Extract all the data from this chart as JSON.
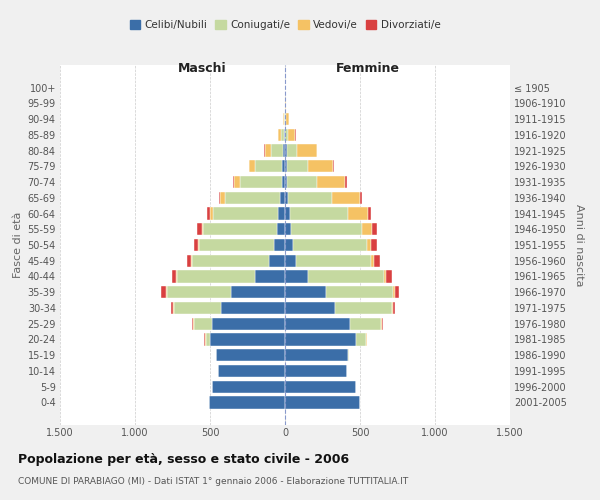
{
  "age_groups": [
    "0-4",
    "5-9",
    "10-14",
    "15-19",
    "20-24",
    "25-29",
    "30-34",
    "35-39",
    "40-44",
    "45-49",
    "50-54",
    "55-59",
    "60-64",
    "65-69",
    "70-74",
    "75-79",
    "80-84",
    "85-89",
    "90-94",
    "95-99",
    "100+"
  ],
  "birth_years": [
    "2001-2005",
    "1996-2000",
    "1991-1995",
    "1986-1990",
    "1981-1985",
    "1976-1980",
    "1971-1975",
    "1966-1970",
    "1961-1965",
    "1956-1960",
    "1951-1955",
    "1946-1950",
    "1941-1945",
    "1936-1940",
    "1931-1935",
    "1926-1930",
    "1921-1925",
    "1916-1920",
    "1911-1915",
    "1906-1910",
    "≤ 1905"
  ],
  "males": {
    "celibi": [
      510,
      490,
      450,
      460,
      500,
      490,
      430,
      360,
      200,
      110,
      75,
      55,
      50,
      32,
      22,
      18,
      15,
      5,
      2,
      0,
      0
    ],
    "coniugati": [
      0,
      0,
      0,
      2,
      30,
      120,
      310,
      430,
      520,
      510,
      500,
      490,
      430,
      370,
      280,
      180,
      80,
      20,
      5,
      2,
      0
    ],
    "vedovi": [
      0,
      0,
      0,
      0,
      5,
      5,
      5,
      5,
      5,
      5,
      5,
      10,
      20,
      30,
      40,
      40,
      40,
      20,
      5,
      0,
      0
    ],
    "divorziati": [
      0,
      0,
      0,
      0,
      2,
      5,
      15,
      30,
      30,
      30,
      30,
      30,
      20,
      10,
      5,
      5,
      5,
      2,
      0,
      0,
      0
    ]
  },
  "females": {
    "nubili": [
      500,
      470,
      410,
      420,
      470,
      430,
      330,
      270,
      150,
      75,
      55,
      40,
      30,
      20,
      12,
      10,
      10,
      3,
      2,
      0,
      0
    ],
    "coniugate": [
      0,
      0,
      0,
      5,
      70,
      210,
      380,
      450,
      510,
      500,
      490,
      470,
      390,
      290,
      200,
      140,
      70,
      15,
      5,
      2,
      0
    ],
    "vedove": [
      0,
      0,
      0,
      0,
      5,
      5,
      10,
      10,
      15,
      20,
      30,
      70,
      130,
      190,
      190,
      170,
      130,
      50,
      20,
      2,
      0
    ],
    "divorziate": [
      0,
      0,
      0,
      0,
      2,
      5,
      15,
      30,
      35,
      40,
      35,
      35,
      20,
      15,
      10,
      5,
      5,
      2,
      0,
      0,
      0
    ]
  },
  "colors": {
    "celibi": "#3B6EA8",
    "coniugati": "#C5D9A0",
    "vedovi": "#F5C264",
    "divorziati": "#D94040"
  },
  "title": "Popolazione per età, sesso e stato civile - 2006",
  "subtitle": "COMUNE DI PARABIAGO (MI) - Dati ISTAT 1° gennaio 2006 - Elaborazione TUTTITALIA.IT",
  "ylabel_left": "Fasce di età",
  "ylabel_right": "Anni di nascita",
  "xlabel_maschi": "Maschi",
  "xlabel_femmine": "Femmine",
  "xlim": 1500,
  "bg_color": "#f0f0f0",
  "plot_bg": "#ffffff"
}
